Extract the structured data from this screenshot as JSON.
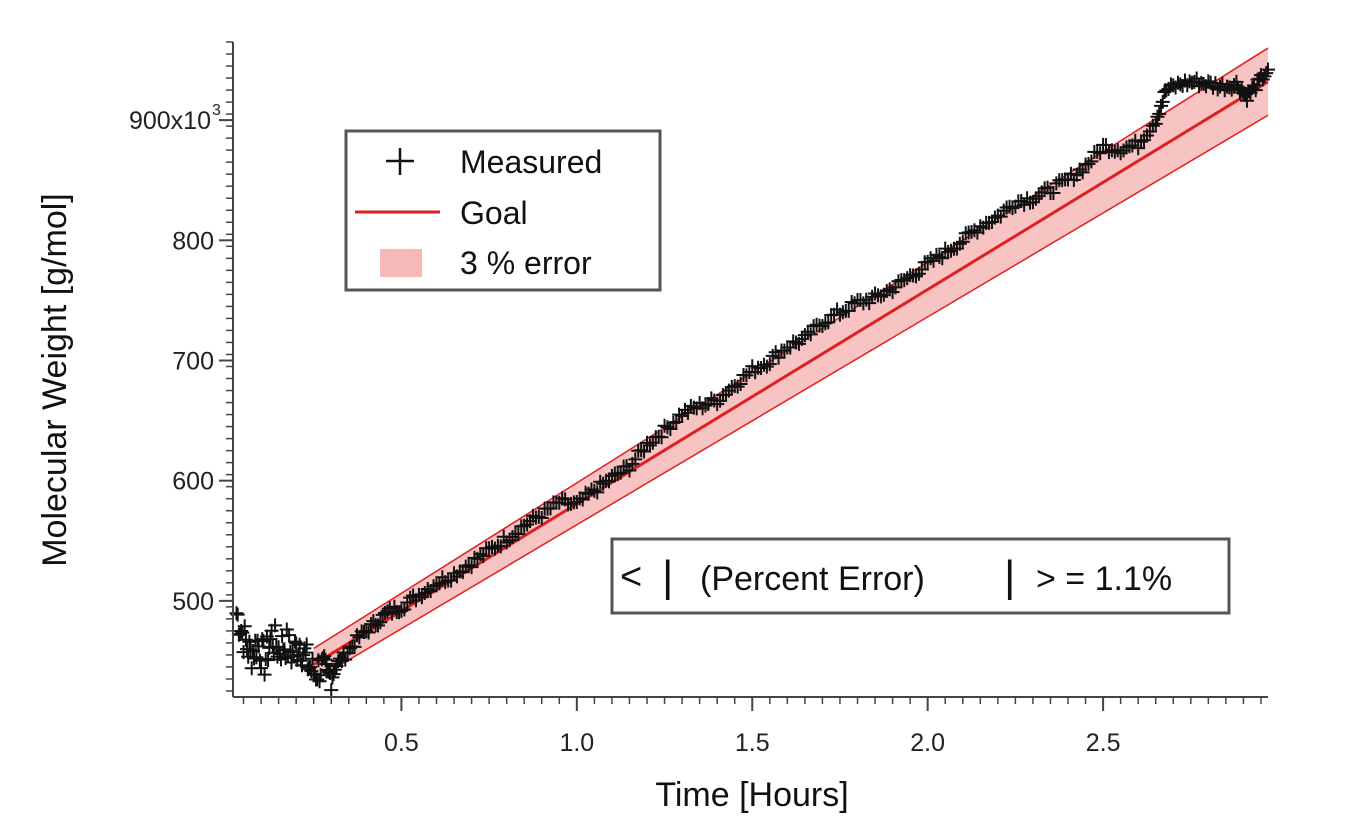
{
  "chart_data": {
    "type": "line",
    "xlabel": "Time [Hours]",
    "ylabel": "Molecular Weight [g/mol]",
    "xlim": [
      0.02,
      2.97
    ],
    "ylim": [
      420000,
      965000
    ],
    "x_ticks": [
      {
        "value": 0.5,
        "label": "0.5"
      },
      {
        "value": 1.0,
        "label": "1.0"
      },
      {
        "value": 1.5,
        "label": "1.5"
      },
      {
        "value": 2.0,
        "label": "2.0"
      },
      {
        "value": 2.5,
        "label": "2.5"
      }
    ],
    "y_ticks": [
      {
        "value": 500000,
        "label": "500"
      },
      {
        "value": 600000,
        "label": "600"
      },
      {
        "value": 700000,
        "label": "700"
      },
      {
        "value": 800000,
        "label": "800"
      },
      {
        "value": 900000,
        "label": "900x10"
      }
    ],
    "y_tick_exponent": "3",
    "legend": {
      "placement": "top-left",
      "entries": [
        "Measured",
        "Goal",
        "3 % error"
      ]
    },
    "annotation": {
      "lt": "<",
      "bar": "|",
      "text": "(Percent Error)",
      "gt_eq": "> = 1.1%"
    },
    "series": [
      {
        "name": "Measured",
        "style": "plus-markers",
        "color": "#111111",
        "x": [
          0.03,
          0.05,
          0.07,
          0.09,
          0.11,
          0.13,
          0.15,
          0.17,
          0.19,
          0.21,
          0.23,
          0.25,
          0.27,
          0.29,
          0.31,
          0.34,
          0.38,
          0.42,
          0.46,
          0.5,
          0.55,
          0.6,
          0.65,
          0.7,
          0.75,
          0.8,
          0.85,
          0.9,
          0.95,
          1.0,
          1.05,
          1.1,
          1.15,
          1.2,
          1.25,
          1.3,
          1.35,
          1.4,
          1.45,
          1.5,
          1.55,
          1.6,
          1.65,
          1.7,
          1.75,
          1.8,
          1.85,
          1.9,
          1.95,
          2.0,
          2.05,
          2.1,
          2.15,
          2.2,
          2.25,
          2.3,
          2.35,
          2.4,
          2.45,
          2.5,
          2.55,
          2.6,
          2.65,
          2.68,
          2.72,
          2.76,
          2.8,
          2.84,
          2.88,
          2.91,
          2.94,
          2.97
        ],
        "values": [
          490000,
          470000,
          455000,
          465000,
          450000,
          470000,
          460000,
          465000,
          455000,
          465000,
          450000,
          440000,
          445000,
          435000,
          445000,
          455000,
          470000,
          480000,
          490000,
          495000,
          505000,
          515000,
          522000,
          532000,
          542000,
          552000,
          563000,
          572000,
          582000,
          580000,
          592000,
          602000,
          612000,
          630000,
          642000,
          656000,
          662000,
          667000,
          680000,
          692000,
          700000,
          712000,
          718000,
          732000,
          740000,
          748000,
          752000,
          760000,
          770000,
          780000,
          790000,
          800000,
          812000,
          820000,
          832000,
          835000,
          842000,
          850000,
          862000,
          878000,
          876000,
          880000,
          900000,
          925000,
          930000,
          932000,
          930000,
          928000,
          930000,
          920000,
          930000,
          942000
        ]
      },
      {
        "name": "Goal",
        "style": "line",
        "color": "#e02020",
        "x": [
          0.25,
          2.97
        ],
        "values": [
          447000,
          932000
        ]
      }
    ],
    "error_band": {
      "label": "3 % error",
      "fraction": 0.03,
      "fill": "#f6b8b8",
      "edge": "#e02020"
    },
    "colors": {
      "measured": "#111111",
      "goal": "#e02020",
      "band_fill": "#f6b8b8",
      "frame": "#555555"
    }
  }
}
